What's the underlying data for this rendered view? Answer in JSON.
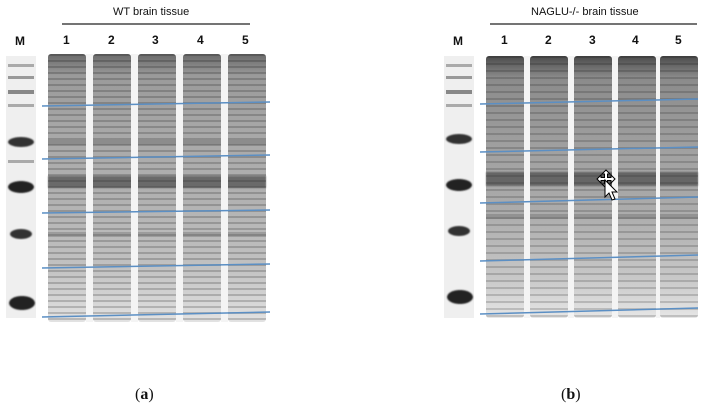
{
  "panel_a": {
    "title": "WT brain tissue",
    "marker_label": "M",
    "lanes": [
      "1",
      "2",
      "3",
      "4",
      "5"
    ],
    "caption_letter": "a"
  },
  "panel_b": {
    "title": "NAGLU-/- brain tissue",
    "marker_label": "M",
    "lanes": [
      "1",
      "2",
      "3",
      "4",
      "5"
    ],
    "caption_letter": "b"
  },
  "colors": {
    "guide_line": "#5b8fc4",
    "gel_dark": "#3a3a3a",
    "gel_light": "#d8d8d8"
  }
}
